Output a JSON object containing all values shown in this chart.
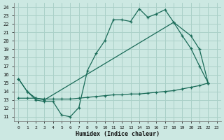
{
  "xlabel": "Humidex (Indice chaleur)",
  "background_color": "#cce8e2",
  "grid_color": "#aad0c8",
  "line_color": "#1a6b58",
  "xlim": [
    -0.5,
    23.5
  ],
  "ylim": [
    10.5,
    24.5
  ],
  "xticks": [
    0,
    1,
    2,
    3,
    4,
    5,
    6,
    7,
    8,
    9,
    10,
    11,
    12,
    13,
    14,
    15,
    16,
    17,
    18,
    19,
    20,
    21,
    22,
    23
  ],
  "yticks": [
    11,
    12,
    13,
    14,
    15,
    16,
    17,
    18,
    19,
    20,
    21,
    22,
    23,
    24
  ],
  "line1_x": [
    0,
    1,
    2,
    3,
    4,
    5,
    6,
    7,
    8,
    9,
    10,
    11,
    12,
    13,
    14,
    15,
    16,
    17,
    18,
    19,
    20,
    21,
    22
  ],
  "line1_y": [
    15.5,
    14.0,
    13.0,
    12.8,
    12.8,
    11.2,
    11.0,
    12.1,
    16.5,
    18.5,
    20.0,
    22.5,
    22.5,
    22.3,
    23.8,
    22.8,
    23.2,
    23.7,
    22.2,
    20.6,
    19.1,
    17.0,
    15.0
  ],
  "line2_x": [
    0,
    1,
    2,
    3,
    18,
    20,
    21,
    22
  ],
  "line2_y": [
    15.5,
    14.0,
    13.2,
    13.0,
    22.2,
    20.6,
    19.0,
    15.0
  ],
  "line3_x": [
    0,
    1,
    2,
    3,
    4,
    5,
    6,
    7,
    8,
    9,
    10,
    11,
    12,
    13,
    14,
    15,
    16,
    17,
    18,
    19,
    20,
    21,
    22
  ],
  "line3_y": [
    13.2,
    13.2,
    13.2,
    13.1,
    13.1,
    13.1,
    13.1,
    13.2,
    13.3,
    13.4,
    13.5,
    13.6,
    13.6,
    13.7,
    13.7,
    13.8,
    13.9,
    14.0,
    14.1,
    14.3,
    14.5,
    14.7,
    15.0
  ]
}
